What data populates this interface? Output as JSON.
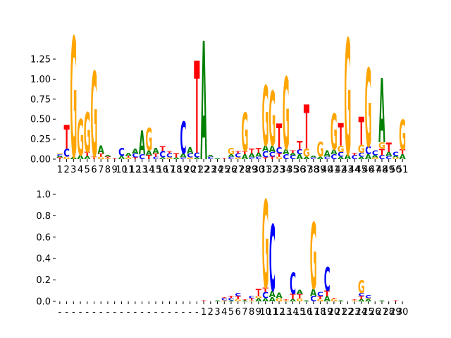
{
  "colors": {
    "A": "#008000",
    "C": "#0000ff",
    "G": "#ffa500",
    "T": "#ff0000"
  },
  "chart_data": [
    {
      "type": "sequence-logo",
      "title": "",
      "xlabel": "",
      "ylabel": "",
      "ylim": [
        0,
        1.45
      ],
      "yticks": [
        "0.00",
        "0.25",
        "0.50",
        "0.75",
        "1.00",
        "1.25"
      ],
      "ytick_values": [
        0,
        0.25,
        0.5,
        0.75,
        1.0,
        1.25
      ],
      "xtick_labels": [
        "1",
        "2",
        "3",
        "4",
        "5",
        "6",
        "7",
        "8",
        "9",
        "10",
        "11",
        "12",
        "13",
        "14",
        "15",
        "16",
        "17",
        "18",
        "19",
        "20",
        "21",
        "22",
        "23",
        "24",
        "25",
        "26",
        "27",
        "28",
        "29",
        "30",
        "31",
        "32",
        "33",
        "34",
        "35",
        "36",
        "37",
        "38",
        "39",
        "40",
        "41",
        "42",
        "43",
        "44",
        "45",
        "46",
        "47",
        "48",
        "49",
        "50",
        "51"
      ],
      "columns": [
        [
          [
            "T",
            0.02
          ],
          [
            "A",
            0.02
          ],
          [
            "C",
            0.02
          ],
          [
            "G",
            0.01
          ]
        ],
        [
          [
            "G",
            0.03
          ],
          [
            "C",
            0.1
          ],
          [
            "T",
            0.3
          ]
        ],
        [
          [
            "A",
            0.03
          ],
          [
            "G",
            1.5
          ]
        ],
        [
          [
            "A",
            0.05
          ],
          [
            "G",
            0.45
          ]
        ],
        [
          [
            "A",
            0.04
          ],
          [
            "T",
            0.05
          ],
          [
            "G",
            0.5
          ]
        ],
        [
          [
            "T",
            0.03
          ],
          [
            "G",
            1.07
          ]
        ],
        [
          [
            "G",
            0.03
          ],
          [
            "T",
            0.04
          ],
          [
            "A",
            0.1
          ]
        ],
        [
          [
            "G",
            0.01
          ],
          [
            "T",
            0.02
          ],
          [
            "A",
            0.02
          ]
        ],
        [
          [
            "T",
            0.01
          ]
        ],
        [
          [
            "A",
            0.04
          ],
          [
            "C",
            0.1
          ]
        ],
        [
          [
            "G",
            0.02
          ],
          [
            "T",
            0.02
          ],
          [
            "A",
            0.04
          ]
        ],
        [
          [
            "T",
            0.02
          ],
          [
            "C",
            0.05
          ],
          [
            "A",
            0.06
          ]
        ],
        [
          [
            "C",
            0.06
          ],
          [
            "A",
            0.3
          ]
        ],
        [
          [
            "T",
            0.05
          ],
          [
            "A",
            0.06
          ],
          [
            "G",
            0.28
          ]
        ],
        [
          [
            "C",
            0.03
          ],
          [
            "T",
            0.04
          ],
          [
            "A",
            0.07
          ]
        ],
        [
          [
            "A",
            0.02
          ],
          [
            "C",
            0.08
          ],
          [
            "T",
            0.06
          ]
        ],
        [
          [
            "G",
            0.02
          ],
          [
            "C",
            0.05
          ],
          [
            "T",
            0.03
          ]
        ],
        [
          [
            "A",
            0.02
          ],
          [
            "T",
            0.05
          ]
        ],
        [
          [
            "C",
            0.02
          ],
          [
            "A",
            0.05
          ],
          [
            "C",
            0.4
          ]
        ],
        [
          [
            "G",
            0.02
          ],
          [
            "C",
            0.05
          ],
          [
            "A",
            0.08
          ]
        ],
        [
          [
            "A",
            0.02
          ],
          [
            "C",
            0.06
          ],
          [
            "T",
            1.15
          ]
        ],
        [
          [
            "A",
            1.48
          ]
        ],
        [
          [
            "C",
            0.03
          ],
          [
            "A",
            0.02
          ]
        ],
        [
          [
            "A",
            0.01
          ]
        ],
        [
          [
            "T",
            0.01
          ]
        ],
        [
          [
            "C",
            0.03
          ],
          [
            "A",
            0.03
          ],
          [
            "G",
            0.08
          ]
        ],
        [
          [
            "G",
            0.02
          ],
          [
            "C",
            0.05
          ],
          [
            "T",
            0.03
          ]
        ],
        [
          [
            "A",
            0.06
          ],
          [
            "T",
            0.04
          ],
          [
            "G",
            0.48
          ]
        ],
        [
          [
            "C",
            0.02
          ],
          [
            "A",
            0.05
          ],
          [
            "T",
            0.06
          ]
        ],
        [
          [
            "C",
            0.03
          ],
          [
            "A",
            0.05
          ],
          [
            "T",
            0.06
          ]
        ],
        [
          [
            "T",
            0.02
          ],
          [
            "C",
            0.08
          ],
          [
            "A",
            0.07
          ],
          [
            "G",
            0.75
          ]
        ],
        [
          [
            "T",
            0.03
          ],
          [
            "C",
            0.06
          ],
          [
            "A",
            0.08
          ],
          [
            "G",
            0.68
          ]
        ],
        [
          [
            "G",
            0.03
          ],
          [
            "T",
            0.04
          ],
          [
            "C",
            0.08
          ],
          [
            "T",
            0.3
          ]
        ],
        [
          [
            "C",
            0.06
          ],
          [
            "A",
            0.07
          ],
          [
            "G",
            0.9
          ]
        ],
        [
          [
            "C",
            0.05
          ],
          [
            "A",
            0.03
          ],
          [
            "T",
            0.03
          ]
        ],
        [
          [
            "A",
            0.06
          ],
          [
            "C",
            0.06
          ],
          [
            "T",
            0.11
          ]
        ],
        [
          [
            "A",
            0.03
          ],
          [
            "G",
            0.1
          ],
          [
            "T",
            0.55
          ]
        ],
        [
          [
            "C",
            0.02
          ],
          [
            "A",
            0.02
          ]
        ],
        [
          [
            "A",
            0.03
          ],
          [
            "G",
            0.18
          ]
        ],
        [
          [
            "C",
            0.03
          ],
          [
            "A",
            0.08
          ]
        ],
        [
          [
            "C",
            0.06
          ],
          [
            "A",
            0.06
          ],
          [
            "G",
            0.45
          ]
        ],
        [
          [
            "A",
            0.03
          ],
          [
            "C",
            0.06
          ],
          [
            "G",
            0.08
          ],
          [
            "T",
            0.28
          ]
        ],
        [
          [
            "A",
            0.06
          ],
          [
            "G",
            1.45
          ]
        ],
        [
          [
            "C",
            0.05
          ],
          [
            "T",
            0.03
          ]
        ],
        [
          [
            "A",
            0.03
          ],
          [
            "C",
            0.05
          ],
          [
            "G",
            0.1
          ],
          [
            "T",
            0.35
          ]
        ],
        [
          [
            "A",
            0.06
          ],
          [
            "C",
            0.1
          ],
          [
            "G",
            0.98
          ]
        ],
        [
          [
            "G",
            0.02
          ],
          [
            "A",
            0.03
          ],
          [
            "C",
            0.06
          ]
        ],
        [
          [
            "C",
            0.05
          ],
          [
            "T",
            0.08
          ],
          [
            "G",
            0.08
          ],
          [
            "A",
            0.8
          ]
        ],
        [
          [
            "C",
            0.04
          ],
          [
            "A",
            0.05
          ],
          [
            "T",
            0.12
          ]
        ],
        [
          [
            "G",
            0.02
          ],
          [
            "A",
            0.02
          ],
          [
            "C",
            0.05
          ]
        ],
        [
          [
            "A",
            0.06
          ],
          [
            "T",
            0.06
          ],
          [
            "G",
            0.38
          ]
        ]
      ]
    },
    {
      "type": "sequence-logo",
      "title": "",
      "xlabel": "",
      "ylabel": "",
      "ylim": [
        0,
        1.05
      ],
      "yticks": [
        "0.0",
        "0.2",
        "0.4",
        "0.6",
        "0.8",
        "1.0"
      ],
      "ytick_values": [
        0,
        0.2,
        0.4,
        0.6,
        0.8,
        1.0
      ],
      "xtick_labels": [
        "-",
        "-",
        "-",
        "-",
        "-",
        "-",
        "-",
        "-",
        "-",
        "-",
        "-",
        "-",
        "-",
        "-",
        "-",
        "-",
        "-",
        "-",
        "-",
        "-",
        "-",
        "1",
        "2",
        "3",
        "4",
        "5",
        "6",
        "7",
        "8",
        "9",
        "10",
        "11",
        "12",
        "13",
        "14",
        "15",
        "16",
        "17",
        "18",
        "19",
        "20",
        "21",
        "22",
        "23",
        "24",
        "25",
        "26",
        "27",
        "28",
        "29",
        "30"
      ],
      "columns": [
        [],
        [],
        [],
        [],
        [],
        [],
        [],
        [],
        [],
        [],
        [],
        [],
        [],
        [],
        [],
        [],
        [],
        [],
        [],
        [],
        [],
        [
          [
            "T",
            0.01
          ]
        ],
        [],
        [
          [
            "A",
            0.01
          ]
        ],
        [
          [
            "G",
            0.01
          ],
          [
            "C",
            0.02
          ],
          [
            "T",
            0.01
          ]
        ],
        [
          [
            "A",
            0.01
          ],
          [
            "C",
            0.02
          ],
          [
            "T",
            0.02
          ]
        ],
        [
          [
            "G",
            0.02
          ],
          [
            "T",
            0.03
          ],
          [
            "C",
            0.03
          ]
        ],
        [
          [
            "A",
            0.01
          ],
          [
            "T",
            0.01
          ]
        ],
        [
          [
            "G",
            0.01
          ],
          [
            "T",
            0.02
          ],
          [
            "C",
            0.02
          ]
        ],
        [
          [
            "A",
            0.03
          ],
          [
            "G",
            0.02
          ],
          [
            "T",
            0.07
          ]
        ],
        [
          [
            "A",
            0.03
          ],
          [
            "C",
            0.06
          ],
          [
            "T",
            0.04
          ],
          [
            "G",
            0.82
          ]
        ],
        [
          [
            "A",
            0.04
          ],
          [
            "A",
            0.06
          ],
          [
            "C",
            0.62
          ]
        ],
        [
          [
            "G",
            0.03
          ],
          [
            "A",
            0.05
          ]
        ],
        [
          [
            "G",
            0.01
          ],
          [
            "T",
            0.01
          ]
        ],
        [
          [
            "A",
            0.02
          ],
          [
            "T",
            0.05
          ],
          [
            "C",
            0.2
          ]
        ],
        [
          [
            "G",
            0.03
          ],
          [
            "T",
            0.04
          ],
          [
            "A",
            0.04
          ]
        ],
        [
          [
            "A",
            0.01
          ]
        ],
        [
          [
            "C",
            0.05
          ],
          [
            "A",
            0.07
          ],
          [
            "G",
            0.62
          ]
        ],
        [
          [
            "G",
            0.02
          ],
          [
            "T",
            0.03
          ],
          [
            "C",
            0.04
          ]
        ],
        [
          [
            "A",
            0.05
          ],
          [
            "T",
            0.05
          ],
          [
            "C",
            0.22
          ]
        ],
        [
          [
            "G",
            0.02
          ],
          [
            "T",
            0.01
          ]
        ],
        [
          [
            "A",
            0.01
          ]
        ],
        [],
        [
          [
            "G",
            0.01
          ],
          [
            "T",
            0.01
          ]
        ],
        [
          [
            "A",
            0.02
          ],
          [
            "T",
            0.03
          ],
          [
            "C",
            0.03
          ],
          [
            "G",
            0.12
          ]
        ],
        [
          [
            "A",
            0.02
          ],
          [
            "G",
            0.01
          ],
          [
            "C",
            0.03
          ]
        ],
        [],
        [
          [
            "A",
            0.01
          ]
        ],
        [],
        [
          [
            "T",
            0.01
          ]
        ],
        []
      ]
    }
  ]
}
